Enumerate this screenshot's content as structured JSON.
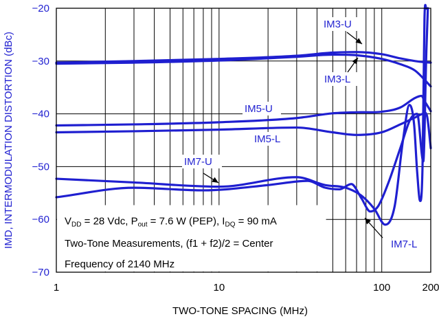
{
  "chart_data": {
    "type": "line",
    "xlabel": "TWO-TONE SPACING (MHz)",
    "ylabel": "IMD, INTERMODULATION DISTORTION (dBc)",
    "x_scale": "log",
    "xlim": [
      1,
      200
    ],
    "ylim": [
      -70,
      -20
    ],
    "x_ticks": [
      1,
      10,
      100,
      200
    ],
    "x_tick_labels": [
      "1",
      "10",
      "100",
      "200"
    ],
    "y_ticks": [
      -20,
      -30,
      -40,
      -50,
      -60,
      -70
    ],
    "y_tick_labels": [
      "−20",
      "−30",
      "−40",
      "−50",
      "−60",
      "−70"
    ],
    "grid": true,
    "line_color": "#1f1fd0",
    "series": [
      {
        "name": "IM3-U",
        "points": [
          [
            1,
            -30.3
          ],
          [
            3,
            -30.0
          ],
          [
            10,
            -29.6
          ],
          [
            30,
            -29.0
          ],
          [
            50,
            -28.4
          ],
          [
            70,
            -28.3
          ],
          [
            100,
            -28.7
          ],
          [
            130,
            -29.5
          ],
          [
            160,
            -30.0
          ],
          [
            180,
            -30.2
          ],
          [
            200,
            -30.3
          ]
        ]
      },
      {
        "name": "IM3-L",
        "points": [
          [
            1,
            -30.5
          ],
          [
            3,
            -30.3
          ],
          [
            10,
            -29.9
          ],
          [
            30,
            -29.2
          ],
          [
            50,
            -28.8
          ],
          [
            70,
            -28.9
          ],
          [
            100,
            -29.6
          ],
          [
            130,
            -30.6
          ],
          [
            160,
            -31.8
          ],
          [
            200,
            -34.8
          ]
        ]
      },
      {
        "name": "IM5-U",
        "points": [
          [
            1,
            -42.2
          ],
          [
            3,
            -42.0
          ],
          [
            10,
            -41.6
          ],
          [
            30,
            -40.8
          ],
          [
            50,
            -39.9
          ],
          [
            70,
            -39.7
          ],
          [
            100,
            -39.6
          ],
          [
            130,
            -38.8
          ],
          [
            160,
            -37.0
          ],
          [
            175,
            -36.6
          ],
          [
            185,
            -37.8
          ],
          [
            200,
            -39.5
          ]
        ]
      },
      {
        "name": "IM5-L",
        "points": [
          [
            1,
            -43.5
          ],
          [
            3,
            -43.3
          ],
          [
            10,
            -43.0
          ],
          [
            30,
            -42.6
          ],
          [
            50,
            -43.5
          ],
          [
            70,
            -44.0
          ],
          [
            100,
            -43.5
          ],
          [
            130,
            -42.0
          ],
          [
            160,
            -40.7
          ],
          [
            180,
            -40.0
          ],
          [
            190,
            -40.5
          ],
          [
            200,
            -46.5
          ]
        ]
      },
      {
        "name": "IM7-U",
        "points": [
          [
            1,
            -52.3
          ],
          [
            3,
            -53.0
          ],
          [
            10,
            -53.8
          ],
          [
            30,
            -52.0
          ],
          [
            45,
            -53.5
          ],
          [
            60,
            -54.0
          ],
          [
            75,
            -55.5
          ],
          [
            90,
            -58.0
          ],
          [
            105,
            -61.0
          ],
          [
            120,
            -57.5
          ],
          [
            135,
            -45.0
          ],
          [
            148,
            -38.3
          ],
          [
            158,
            -42.0
          ],
          [
            165,
            -51.0
          ],
          [
            172,
            -56.5
          ],
          [
            178,
            -50.0
          ],
          [
            183,
            -22.0
          ],
          [
            188,
            -20.0
          ]
        ]
      },
      {
        "name": "IM7-L",
        "points": [
          [
            1,
            -55.8
          ],
          [
            3,
            -54.0
          ],
          [
            8,
            -54.5
          ],
          [
            20,
            -53.5
          ],
          [
            35,
            -52.7
          ],
          [
            45,
            -54.0
          ],
          [
            55,
            -54.3
          ],
          [
            65,
            -53.3
          ],
          [
            75,
            -56.0
          ],
          [
            85,
            -58.5
          ],
          [
            95,
            -57.5
          ],
          [
            110,
            -53.0
          ],
          [
            130,
            -46.5
          ],
          [
            150,
            -41.0
          ],
          [
            165,
            -40.0
          ],
          [
            180,
            -49.0
          ],
          [
            188,
            -28.0
          ],
          [
            192,
            -20.0
          ]
        ]
      }
    ],
    "annotations": [
      {
        "text": "IM3-U"
      },
      {
        "text": "IM3-L"
      },
      {
        "text": "IM5-U"
      },
      {
        "text": "IM5-L"
      },
      {
        "text": "IM7-U"
      },
      {
        "text": "IM7-L"
      }
    ],
    "note_lines": [
      {
        "parts": [
          [
            "V",
            ""
          ],
          [
            "DD",
            "sub"
          ],
          [
            " = 28 Vdc, P",
            ""
          ],
          [
            "out",
            "sub"
          ],
          [
            " = 7.6 W (PEP), I",
            ""
          ],
          [
            "DQ",
            "sub"
          ],
          [
            " = 90 mA",
            ""
          ]
        ]
      },
      {
        "parts": [
          [
            "Two-Tone Measurements, (f1 + f2)/2 = Center",
            ""
          ]
        ]
      },
      {
        "parts": [
          [
            "Frequency of 2140 MHz",
            ""
          ]
        ]
      }
    ]
  }
}
